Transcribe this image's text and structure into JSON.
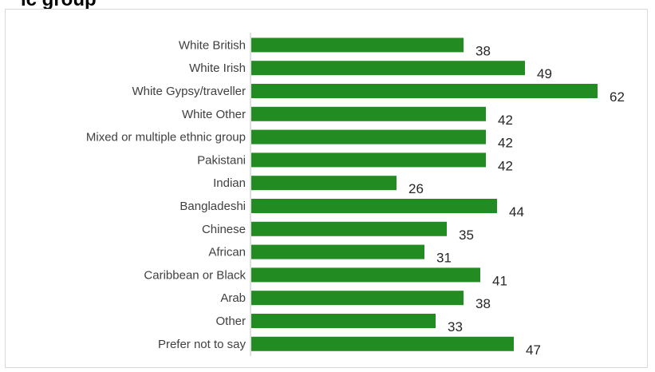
{
  "header": {
    "title": "ic group"
  },
  "chart_data": {
    "type": "bar",
    "orientation": "horizontal",
    "categories": [
      "White British",
      "White Irish",
      "White Gypsy/traveller",
      "White Other",
      "Mixed or multiple ethnic group",
      "Pakistani",
      "Indian",
      "Bangladeshi",
      "Chinese",
      "African",
      "Caribbean or Black",
      "Arab",
      "Other",
      "Prefer not to say"
    ],
    "values": [
      38,
      49,
      62,
      42,
      42,
      42,
      26,
      44,
      35,
      31,
      41,
      38,
      33,
      47
    ],
    "bar_color": "#228b22",
    "xlim": [
      0,
      62
    ],
    "grid": false,
    "legend": "none"
  }
}
